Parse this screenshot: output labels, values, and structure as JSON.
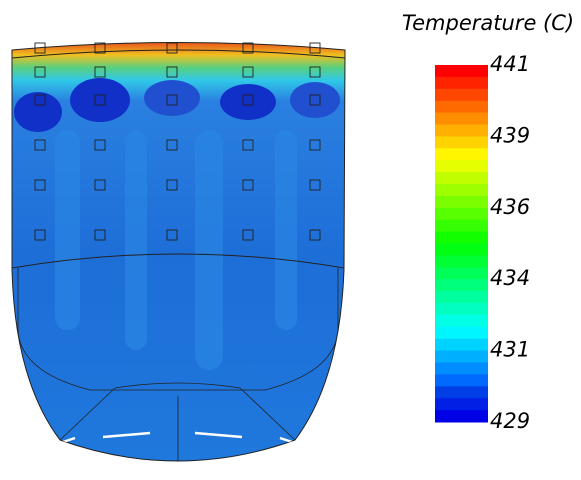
{
  "legend": {
    "title": "Temperature (C)",
    "labels": [
      441,
      439,
      436,
      434,
      431,
      429
    ]
  }
}
